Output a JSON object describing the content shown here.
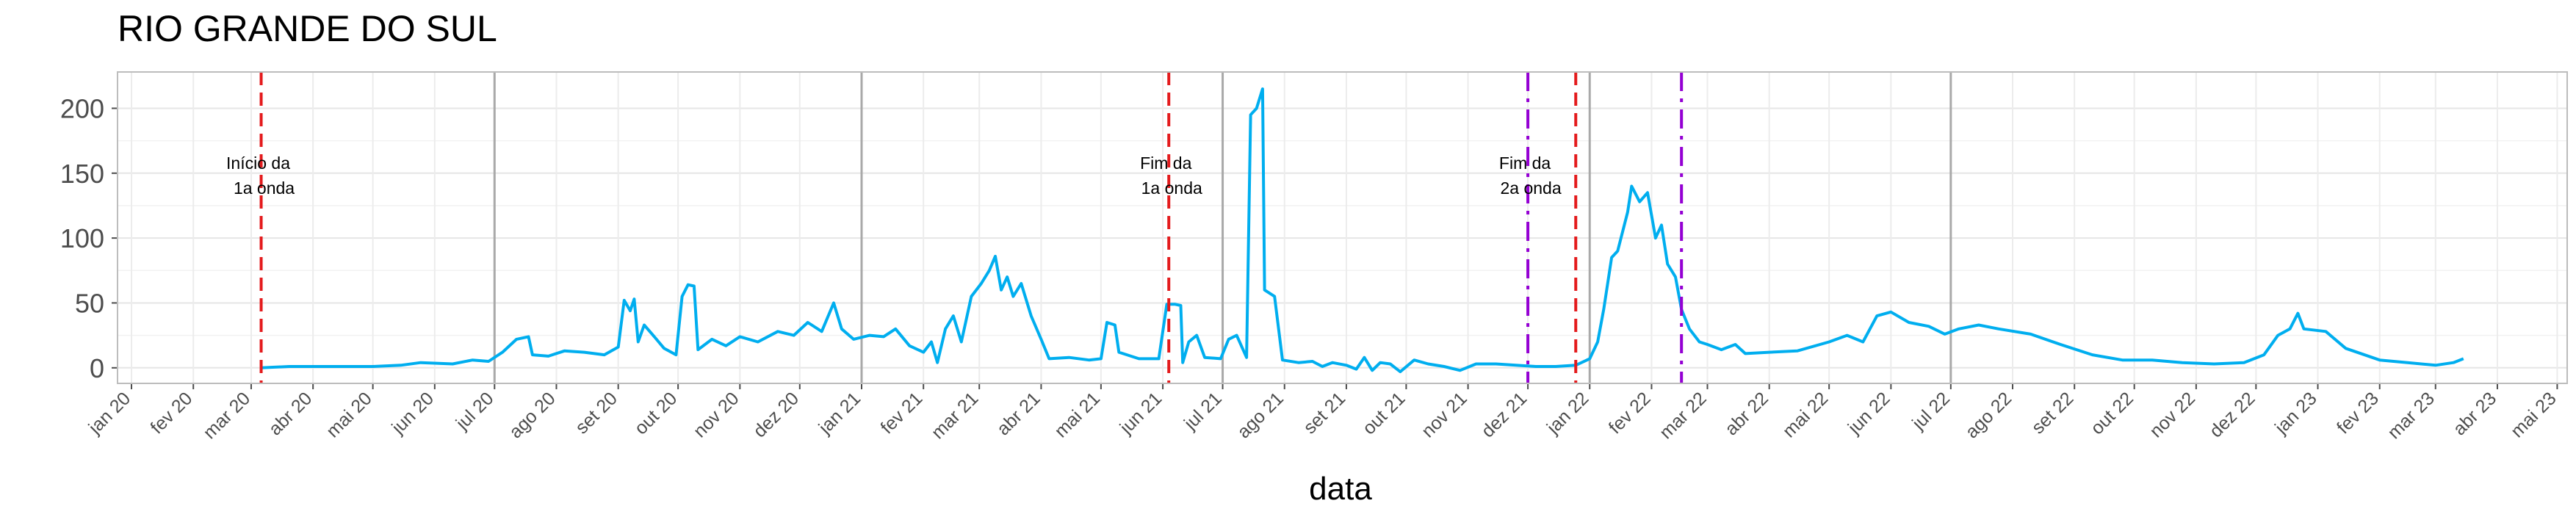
{
  "chart_data": {
    "type": "line",
    "title": "RIO GRANDE DO SUL",
    "xlabel": "data",
    "ylabel": "",
    "ylim": [
      -12,
      228
    ],
    "y_ticks": [
      0,
      50,
      100,
      150,
      200
    ],
    "x_range": [
      "2019-12-25",
      "2023-05-06"
    ],
    "grid": true,
    "legend": "none",
    "line_color": "#00AEEF",
    "x_ticks": [
      {
        "date": "2020-01-01",
        "label": "jan 20"
      },
      {
        "date": "2020-02-01",
        "label": "fev 20"
      },
      {
        "date": "2020-03-01",
        "label": "mar 20"
      },
      {
        "date": "2020-04-01",
        "label": "abr 20"
      },
      {
        "date": "2020-05-01",
        "label": "mai 20"
      },
      {
        "date": "2020-06-01",
        "label": "jun 20"
      },
      {
        "date": "2020-07-01",
        "label": "jul 20"
      },
      {
        "date": "2020-08-01",
        "label": "ago 20"
      },
      {
        "date": "2020-09-01",
        "label": "set 20"
      },
      {
        "date": "2020-10-01",
        "label": "out 20"
      },
      {
        "date": "2020-11-01",
        "label": "nov 20"
      },
      {
        "date": "2020-12-01",
        "label": "dez 20"
      },
      {
        "date": "2021-01-01",
        "label": "jan 21"
      },
      {
        "date": "2021-02-01",
        "label": "fev 21"
      },
      {
        "date": "2021-03-01",
        "label": "mar 21"
      },
      {
        "date": "2021-04-01",
        "label": "abr 21"
      },
      {
        "date": "2021-05-01",
        "label": "mai 21"
      },
      {
        "date": "2021-06-01",
        "label": "jun 21"
      },
      {
        "date": "2021-07-01",
        "label": "jul 21"
      },
      {
        "date": "2021-08-01",
        "label": "ago 21"
      },
      {
        "date": "2021-09-01",
        "label": "set 21"
      },
      {
        "date": "2021-10-01",
        "label": "out 21"
      },
      {
        "date": "2021-11-01",
        "label": "nov 21"
      },
      {
        "date": "2021-12-01",
        "label": "dez 21"
      },
      {
        "date": "2022-01-01",
        "label": "jan 22"
      },
      {
        "date": "2022-02-01",
        "label": "fev 22"
      },
      {
        "date": "2022-03-01",
        "label": "mar 22"
      },
      {
        "date": "2022-04-01",
        "label": "abr 22"
      },
      {
        "date": "2022-05-01",
        "label": "mai 22"
      },
      {
        "date": "2022-06-01",
        "label": "jun 22"
      },
      {
        "date": "2022-07-01",
        "label": "jul 22"
      },
      {
        "date": "2022-08-01",
        "label": "ago 22"
      },
      {
        "date": "2022-09-01",
        "label": "set 22"
      },
      {
        "date": "2022-10-01",
        "label": "out 22"
      },
      {
        "date": "2022-11-01",
        "label": "nov 22"
      },
      {
        "date": "2022-12-01",
        "label": "dez 22"
      },
      {
        "date": "2023-01-01",
        "label": "jan 23"
      },
      {
        "date": "2023-02-01",
        "label": "fev 23"
      },
      {
        "date": "2023-03-01",
        "label": "mar 23"
      },
      {
        "date": "2023-04-01",
        "label": "abr 23"
      },
      {
        "date": "2023-05-01",
        "label": "mai 23"
      }
    ],
    "semester_lines": [
      "2020-07-01",
      "2021-01-01",
      "2021-07-01",
      "2022-01-01",
      "2022-07-01"
    ],
    "wave_markers": [
      {
        "date": "2020-03-06",
        "color": "#E41A1C",
        "style": "dashed",
        "label": [
          "Início da",
          "1a onda"
        ]
      },
      {
        "date": "2021-06-04",
        "color": "#E41A1C",
        "style": "dashed",
        "label": [
          "Fim da",
          "1a onda"
        ]
      },
      {
        "date": "2021-12-25",
        "color": "#E41A1C",
        "style": "dashed",
        "label": []
      },
      {
        "date": "2021-12-01",
        "color": "#9400D3",
        "style": "dashdot",
        "label": [
          "Fim da",
          "2a onda"
        ]
      },
      {
        "date": "2022-02-16",
        "color": "#9400D3",
        "style": "dashdot",
        "label": []
      }
    ],
    "series": [
      {
        "points": [
          [
            "2020-03-06",
            0
          ],
          [
            "2020-03-20",
            1
          ],
          [
            "2020-04-10",
            1
          ],
          [
            "2020-05-01",
            1
          ],
          [
            "2020-05-15",
            2
          ],
          [
            "2020-05-25",
            4
          ],
          [
            "2020-06-10",
            3
          ],
          [
            "2020-06-20",
            6
          ],
          [
            "2020-06-28",
            5
          ],
          [
            "2020-07-05",
            12
          ],
          [
            "2020-07-12",
            22
          ],
          [
            "2020-07-18",
            24
          ],
          [
            "2020-07-20",
            10
          ],
          [
            "2020-07-28",
            9
          ],
          [
            "2020-08-05",
            13
          ],
          [
            "2020-08-15",
            12
          ],
          [
            "2020-08-25",
            10
          ],
          [
            "2020-09-01",
            16
          ],
          [
            "2020-09-04",
            52
          ],
          [
            "2020-09-07",
            44
          ],
          [
            "2020-09-09",
            53
          ],
          [
            "2020-09-11",
            20
          ],
          [
            "2020-09-14",
            33
          ],
          [
            "2020-09-18",
            26
          ],
          [
            "2020-09-24",
            15
          ],
          [
            "2020-09-30",
            10
          ],
          [
            "2020-10-03",
            55
          ],
          [
            "2020-10-06",
            64
          ],
          [
            "2020-10-09",
            63
          ],
          [
            "2020-10-11",
            14
          ],
          [
            "2020-10-18",
            22
          ],
          [
            "2020-10-25",
            17
          ],
          [
            "2020-11-01",
            24
          ],
          [
            "2020-11-10",
            20
          ],
          [
            "2020-11-20",
            28
          ],
          [
            "2020-11-28",
            25
          ],
          [
            "2020-12-05",
            35
          ],
          [
            "2020-12-12",
            28
          ],
          [
            "2020-12-18",
            50
          ],
          [
            "2020-12-22",
            30
          ],
          [
            "2020-12-28",
            22
          ],
          [
            "2021-01-05",
            25
          ],
          [
            "2021-01-12",
            24
          ],
          [
            "2021-01-18",
            30
          ],
          [
            "2021-01-25",
            17
          ],
          [
            "2021-02-01",
            12
          ],
          [
            "2021-02-05",
            20
          ],
          [
            "2021-02-08",
            4
          ],
          [
            "2021-02-12",
            30
          ],
          [
            "2021-02-16",
            40
          ],
          [
            "2021-02-20",
            20
          ],
          [
            "2021-02-25",
            55
          ],
          [
            "2021-03-02",
            65
          ],
          [
            "2021-03-06",
            75
          ],
          [
            "2021-03-09",
            86
          ],
          [
            "2021-03-12",
            60
          ],
          [
            "2021-03-15",
            70
          ],
          [
            "2021-03-18",
            55
          ],
          [
            "2021-03-22",
            65
          ],
          [
            "2021-03-27",
            40
          ],
          [
            "2021-04-01",
            22
          ],
          [
            "2021-04-05",
            7
          ],
          [
            "2021-04-15",
            8
          ],
          [
            "2021-04-25",
            6
          ],
          [
            "2021-05-01",
            7
          ],
          [
            "2021-05-04",
            35
          ],
          [
            "2021-05-08",
            33
          ],
          [
            "2021-05-10",
            12
          ],
          [
            "2021-05-20",
            7
          ],
          [
            "2021-05-30",
            7
          ],
          [
            "2021-06-03",
            49
          ],
          [
            "2021-06-07",
            49
          ],
          [
            "2021-06-10",
            48
          ],
          [
            "2021-06-11",
            4
          ],
          [
            "2021-06-14",
            20
          ],
          [
            "2021-06-18",
            25
          ],
          [
            "2021-06-22",
            8
          ],
          [
            "2021-06-30",
            7
          ],
          [
            "2021-07-04",
            22
          ],
          [
            "2021-07-08",
            25
          ],
          [
            "2021-07-13",
            8
          ],
          [
            "2021-07-15",
            195
          ],
          [
            "2021-07-18",
            200
          ],
          [
            "2021-07-21",
            215
          ],
          [
            "2021-07-22",
            60
          ],
          [
            "2021-07-27",
            55
          ],
          [
            "2021-07-31",
            6
          ],
          [
            "2021-08-08",
            4
          ],
          [
            "2021-08-15",
            5
          ],
          [
            "2021-08-20",
            1
          ],
          [
            "2021-08-25",
            4
          ],
          [
            "2021-09-01",
            2
          ],
          [
            "2021-09-06",
            -1
          ],
          [
            "2021-09-10",
            8
          ],
          [
            "2021-09-14",
            -2
          ],
          [
            "2021-09-18",
            4
          ],
          [
            "2021-09-23",
            3
          ],
          [
            "2021-09-28",
            -3
          ],
          [
            "2021-10-05",
            6
          ],
          [
            "2021-10-12",
            3
          ],
          [
            "2021-10-20",
            1
          ],
          [
            "2021-10-28",
            -2
          ],
          [
            "2021-11-05",
            3
          ],
          [
            "2021-11-15",
            3
          ],
          [
            "2021-11-25",
            2
          ],
          [
            "2021-12-05",
            1
          ],
          [
            "2021-12-15",
            1
          ],
          [
            "2021-12-25",
            2
          ],
          [
            "2022-01-01",
            7
          ],
          [
            "2022-01-05",
            20
          ],
          [
            "2022-01-08",
            45
          ],
          [
            "2022-01-12",
            85
          ],
          [
            "2022-01-15",
            90
          ],
          [
            "2022-01-20",
            120
          ],
          [
            "2022-01-22",
            140
          ],
          [
            "2022-01-26",
            128
          ],
          [
            "2022-01-30",
            135
          ],
          [
            "2022-02-03",
            100
          ],
          [
            "2022-02-06",
            110
          ],
          [
            "2022-02-09",
            80
          ],
          [
            "2022-02-13",
            70
          ],
          [
            "2022-02-16",
            45
          ],
          [
            "2022-02-20",
            30
          ],
          [
            "2022-02-25",
            20
          ],
          [
            "2022-03-01",
            18
          ],
          [
            "2022-03-08",
            14
          ],
          [
            "2022-03-15",
            18
          ],
          [
            "2022-03-20",
            11
          ],
          [
            "2022-04-01",
            12
          ],
          [
            "2022-04-15",
            13
          ],
          [
            "2022-05-01",
            20
          ],
          [
            "2022-05-10",
            25
          ],
          [
            "2022-05-18",
            20
          ],
          [
            "2022-05-25",
            40
          ],
          [
            "2022-06-01",
            43
          ],
          [
            "2022-06-10",
            35
          ],
          [
            "2022-06-20",
            32
          ],
          [
            "2022-06-28",
            26
          ],
          [
            "2022-07-05",
            30
          ],
          [
            "2022-07-15",
            33
          ],
          [
            "2022-07-25",
            30
          ],
          [
            "2022-08-10",
            26
          ],
          [
            "2022-08-25",
            18
          ],
          [
            "2022-09-10",
            10
          ],
          [
            "2022-09-25",
            6
          ],
          [
            "2022-10-10",
            6
          ],
          [
            "2022-10-25",
            4
          ],
          [
            "2022-11-10",
            3
          ],
          [
            "2022-11-25",
            4
          ],
          [
            "2022-12-05",
            10
          ],
          [
            "2022-12-12",
            25
          ],
          [
            "2022-12-18",
            30
          ],
          [
            "2022-12-22",
            42
          ],
          [
            "2022-12-25",
            30
          ],
          [
            "2023-01-05",
            28
          ],
          [
            "2023-01-15",
            15
          ],
          [
            "2023-02-01",
            6
          ],
          [
            "2023-02-15",
            4
          ],
          [
            "2023-03-01",
            2
          ],
          [
            "2023-03-10",
            4
          ],
          [
            "2023-03-15",
            7
          ]
        ]
      }
    ]
  }
}
